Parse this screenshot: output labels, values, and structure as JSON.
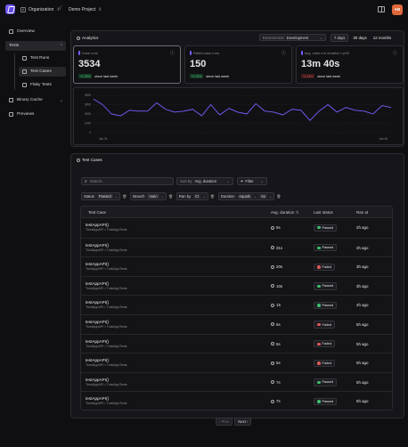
{
  "topbar": {
    "org": "Organization",
    "org_initial": "A",
    "project": "Demo Project",
    "avatar": "AB"
  },
  "sidebar": {
    "items": [
      {
        "label": "Overview"
      },
      {
        "label": "Tests"
      },
      {
        "label": "Test Runs"
      },
      {
        "label": "Test Cases"
      },
      {
        "label": "Flaky Tests"
      },
      {
        "label": "Binary Cache"
      },
      {
        "label": "Previews"
      }
    ]
  },
  "analytics": {
    "title": "Analytics",
    "environment_label": "Environment:",
    "environment_value": "Development",
    "ranges": [
      "7 days",
      "30 days",
      "12 months"
    ],
    "cards": [
      {
        "label": "Case runs",
        "value": "3534",
        "delta": "+1.23%",
        "suffix": "since last week",
        "trend": "up"
      },
      {
        "label": "Failed case runs",
        "value": "150",
        "delta": "+1.23%",
        "suffix": "since last week",
        "trend": "up"
      },
      {
        "label": "Avg. case run duration • p99",
        "value": "13m 40s",
        "delta": "+1.23%",
        "suffix": "since last week",
        "trend": "down"
      }
    ]
  },
  "chart_data": {
    "type": "line",
    "x_labels": [
      "Jan 31",
      "Jan 40"
    ],
    "ytick_labels": [
      "4000",
      "3000",
      "2000",
      "1000",
      "0"
    ],
    "ylim": [
      0,
      4000
    ],
    "values": [
      3600,
      3000,
      2000,
      1800,
      2400,
      2300,
      2300,
      3200,
      2500,
      2200,
      2300,
      2500,
      1800,
      3000,
      1900,
      2600,
      2200,
      2000,
      3100,
      2300,
      2200,
      1900,
      2500,
      2400,
      1300,
      2300,
      3000,
      2200,
      2700,
      2400,
      2300,
      2000,
      2900,
      2700
    ]
  },
  "testcases": {
    "title": "Test Cases",
    "search_placeholder": "Search...",
    "sort_label": "Sort by:",
    "sort_value": "Avg. duration",
    "filter_label": "Filter",
    "filters": [
      {
        "key": "Status",
        "value": "Passed"
      },
      {
        "key": "Branch",
        "value": "main"
      },
      {
        "key": "Ran by",
        "value": "CI"
      },
      {
        "key": "Duration",
        "op": "equals",
        "value": "5s"
      }
    ],
    "columns": [
      "Test Case",
      "Avg. duration",
      "Last status",
      "Ran at"
    ],
    "rows": [
      {
        "name": "testAppAPI()",
        "path": "TuistAppAPI • TuistAppTests",
        "duration": "5s",
        "status": "Passed",
        "ran": "2h ago"
      },
      {
        "name": "testAppAPI()",
        "path": "TuistAppAPI • TuistAppTests",
        "duration": "31s",
        "status": "Passed",
        "ran": "2h ago"
      },
      {
        "name": "testAppAPI()",
        "path": "TuistAppAPI • TuistAppTests",
        "duration": "20s",
        "status": "Failed",
        "ran": "3h ago"
      },
      {
        "name": "testAppAPI()",
        "path": "TuistAppAPI • TuistAppTests",
        "duration": "10s",
        "status": "Passed",
        "ran": "3h ago"
      },
      {
        "name": "testAppAPI()",
        "path": "TuistAppAPI • TuistAppTests",
        "duration": "15",
        "status": "Passed",
        "ran": "4h ago"
      },
      {
        "name": "testAppAPI()",
        "path": "TuistAppAPI • TuistAppTests",
        "duration": "5s",
        "status": "Failed",
        "ran": "5h ago"
      },
      {
        "name": "testAppAPI()",
        "path": "TuistAppAPI • TuistAppTests",
        "duration": "5s",
        "status": "Failed",
        "ran": "5h ago"
      },
      {
        "name": "testAppAPI()",
        "path": "TuistAppAPI • TuistAppTests",
        "duration": "5s",
        "status": "Failed",
        "ran": "5h ago"
      },
      {
        "name": "testAppAPI()",
        "path": "TuistAppAPI • TuistAppTests",
        "duration": "7s",
        "status": "Passed",
        "ran": "5h ago"
      },
      {
        "name": "testAppAPI()",
        "path": "TuistAppAPI • TuistAppTests",
        "duration": "7s",
        "status": "Passed",
        "ran": "5h ago"
      }
    ],
    "pagination": {
      "prev": "Prev",
      "next": "Next"
    }
  }
}
